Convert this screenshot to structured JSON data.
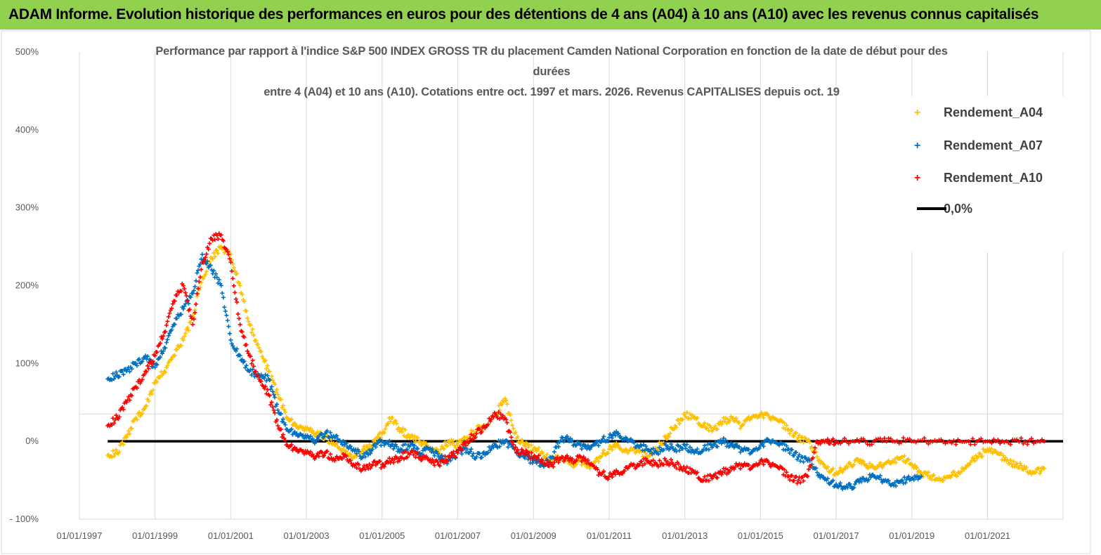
{
  "banner": {
    "text": "ADAM Informe. Evolution historique des performances en euros pour des détentions de 4 ans (A04) à 10 ans (A10) avec les revenus connus capitalisés"
  },
  "colors": {
    "banner_bg": "#92d050",
    "A04": "#ffc000",
    "A07": "#0070c0",
    "A10": "#ff0000",
    "zero_line": "#000000",
    "grid": "#d9d9d9"
  },
  "chart_data": {
    "type": "scatter",
    "title_lines": [
      "Performance par rapport à l'indice S&P 500 INDEX GROSS TR  du placement Camden National Corporation en fonction de la date de début pour des",
      "durées",
      "entre 4 (A04) et 10 ans (A10).  Cotations entre oct. 1997 et mars. 2026. Revenus CAPITALISES depuis oct. 19"
    ],
    "xlabel": "",
    "ylabel": "",
    "x_range": [
      "1997-01-01",
      "2022-12-31"
    ],
    "ylim": [
      -100,
      500
    ],
    "y_ticks": [
      -100,
      0,
      100,
      200,
      300,
      400,
      500
    ],
    "y_tick_labels": [
      "- 100%",
      "0%",
      "100%",
      "200%",
      "300%",
      "400%",
      "500%"
    ],
    "x_ticks": [
      "1997-01-01",
      "1999-01-01",
      "2001-01-01",
      "2003-01-01",
      "2005-01-01",
      "2007-01-01",
      "2009-01-01",
      "2011-01-01",
      "2013-01-01",
      "2015-01-01",
      "2017-01-01",
      "2019-01-01",
      "2021-01-01"
    ],
    "x_tick_labels": [
      "01/01/1997",
      "01/01/1999",
      "01/01/2001",
      "01/01/2003",
      "01/01/2005",
      "01/01/2007",
      "01/01/2009",
      "01/01/2011",
      "01/01/2013",
      "01/01/2015",
      "01/01/2017",
      "01/01/2019",
      "01/01/2021"
    ],
    "grid": "vertical",
    "legend_position": "top-right",
    "legend": [
      "Rendement_A04",
      "Rendement_A07",
      "Rendement_A10",
      "0,0%"
    ],
    "series": [
      {
        "name": "Rendement_A04",
        "marker": "+",
        "x": [
          "1997-10-01",
          "1998-01-01",
          "1998-04-01",
          "1998-07-01",
          "1998-10-01",
          "1999-01-01",
          "1999-04-01",
          "1999-07-01",
          "1999-10-01",
          "2000-01-01",
          "2000-04-01",
          "2000-07-01",
          "2000-10-01",
          "2001-01-01",
          "2001-04-01",
          "2001-07-01",
          "2001-10-01",
          "2002-01-01",
          "2002-04-01",
          "2002-07-01",
          "2002-10-01",
          "2003-01-01",
          "2003-04-01",
          "2003-07-01",
          "2003-10-01",
          "2004-01-01",
          "2004-04-01",
          "2004-07-01",
          "2004-10-01",
          "2005-01-01",
          "2005-04-01",
          "2005-07-01",
          "2005-10-01",
          "2006-01-01",
          "2006-04-01",
          "2006-07-01",
          "2006-10-01",
          "2007-01-01",
          "2007-04-01",
          "2007-07-01",
          "2007-10-01",
          "2008-01-01",
          "2008-04-01",
          "2008-07-01",
          "2008-10-01",
          "2009-01-01",
          "2009-04-01",
          "2009-07-01",
          "2009-10-01",
          "2010-01-01",
          "2010-04-01",
          "2010-07-01",
          "2010-10-01",
          "2011-01-01",
          "2011-04-01",
          "2011-07-01",
          "2011-10-01",
          "2012-01-01",
          "2012-04-01",
          "2012-07-01",
          "2012-10-01",
          "2013-01-01",
          "2013-04-01",
          "2013-07-01",
          "2013-10-01",
          "2014-01-01",
          "2014-04-01",
          "2014-07-01",
          "2014-10-01",
          "2015-01-01",
          "2015-04-01",
          "2015-07-01",
          "2015-10-01",
          "2016-01-01",
          "2016-04-01",
          "2016-07-01",
          "2016-10-01",
          "2017-01-01",
          "2017-04-01",
          "2017-07-01",
          "2017-10-01",
          "2018-01-01",
          "2018-04-01",
          "2018-07-01",
          "2018-10-01",
          "2019-01-01",
          "2019-04-01",
          "2019-07-01",
          "2019-10-01",
          "2020-01-01",
          "2020-04-01",
          "2020-07-01",
          "2020-10-01",
          "2021-01-01",
          "2021-04-01",
          "2021-07-01",
          "2021-10-01",
          "2022-01-01",
          "2022-04-01",
          "2022-07-01"
        ],
        "values": [
          -18,
          -15,
          5,
          30,
          45,
          75,
          90,
          110,
          130,
          160,
          210,
          235,
          250,
          240,
          200,
          150,
          120,
          90,
          60,
          30,
          20,
          15,
          10,
          5,
          -5,
          -15,
          -20,
          -10,
          -5,
          10,
          30,
          15,
          5,
          0,
          -10,
          -15,
          0,
          -5,
          5,
          15,
          20,
          35,
          55,
          10,
          -5,
          -10,
          -15,
          -25,
          -20,
          -30,
          -25,
          -35,
          -20,
          -10,
          -5,
          -15,
          -10,
          -20,
          -10,
          5,
          20,
          35,
          30,
          20,
          15,
          25,
          30,
          20,
          30,
          35,
          30,
          25,
          15,
          5,
          0,
          -20,
          -35,
          -40,
          -35,
          -25,
          -30,
          -35,
          -30,
          -25,
          -20,
          -30,
          -40,
          -45,
          -50,
          -45,
          -40,
          -30,
          -20,
          -10,
          -15,
          -25,
          -30,
          -35,
          -40,
          -35
        ]
      },
      {
        "name": "Rendement_A07",
        "marker": "+",
        "x": [
          "1997-10-01",
          "1998-01-01",
          "1998-04-01",
          "1998-07-01",
          "1998-10-01",
          "1999-01-01",
          "1999-04-01",
          "1999-07-01",
          "1999-10-01",
          "2000-01-01",
          "2000-04-01",
          "2000-07-01",
          "2000-10-01",
          "2001-01-01",
          "2001-04-01",
          "2001-07-01",
          "2001-10-01",
          "2002-01-01",
          "2002-04-01",
          "2002-07-01",
          "2002-10-01",
          "2003-01-01",
          "2003-04-01",
          "2003-07-01",
          "2003-10-01",
          "2004-01-01",
          "2004-04-01",
          "2004-07-01",
          "2004-10-01",
          "2005-01-01",
          "2005-04-01",
          "2005-07-01",
          "2005-10-01",
          "2006-01-01",
          "2006-04-01",
          "2006-07-01",
          "2006-10-01",
          "2007-01-01",
          "2007-04-01",
          "2007-07-01",
          "2007-10-01",
          "2008-01-01",
          "2008-04-01",
          "2008-07-01",
          "2008-10-01",
          "2009-01-01",
          "2009-04-01",
          "2009-07-01",
          "2009-10-01",
          "2010-01-01",
          "2010-04-01",
          "2010-07-01",
          "2010-10-01",
          "2011-01-01",
          "2011-04-01",
          "2011-07-01",
          "2011-10-01",
          "2012-01-01",
          "2012-04-01",
          "2012-07-01",
          "2012-10-01",
          "2013-01-01",
          "2013-04-01",
          "2013-07-01",
          "2013-10-01",
          "2014-01-01",
          "2014-04-01",
          "2014-07-01",
          "2014-10-01",
          "2015-01-01",
          "2015-04-01",
          "2015-07-01",
          "2015-10-01",
          "2016-01-01",
          "2016-04-01",
          "2016-07-01",
          "2016-10-01",
          "2017-01-01",
          "2017-04-01",
          "2017-07-01",
          "2017-10-01",
          "2018-01-01",
          "2018-04-01",
          "2018-07-01",
          "2018-10-01",
          "2019-01-01",
          "2019-04-01"
        ],
        "values": [
          80,
          85,
          90,
          100,
          110,
          95,
          120,
          150,
          170,
          190,
          240,
          220,
          200,
          130,
          110,
          90,
          85,
          80,
          40,
          15,
          10,
          5,
          0,
          10,
          5,
          -5,
          -10,
          -20,
          -10,
          0,
          -5,
          -10,
          -5,
          -15,
          -10,
          -20,
          -25,
          -15,
          -10,
          -20,
          -15,
          -5,
          0,
          -10,
          -20,
          -25,
          -30,
          -20,
          5,
          0,
          -5,
          -10,
          0,
          5,
          10,
          0,
          -5,
          -10,
          -15,
          -5,
          -10,
          -5,
          -15,
          -10,
          -5,
          0,
          -5,
          -10,
          -15,
          -5,
          0,
          -5,
          -10,
          -20,
          -25,
          -40,
          -50,
          -55,
          -60,
          -55,
          -50,
          -45,
          -50,
          -55,
          -50,
          -48,
          -45
        ]
      },
      {
        "name": "Rendement_A10",
        "marker": "+",
        "x": [
          "1997-10-01",
          "1998-01-01",
          "1998-04-01",
          "1998-07-01",
          "1998-10-01",
          "1999-01-01",
          "1999-04-01",
          "1999-07-01",
          "1999-10-01",
          "2000-01-01",
          "2000-04-01",
          "2000-07-01",
          "2000-10-01",
          "2001-01-01",
          "2001-04-01",
          "2001-07-01",
          "2001-10-01",
          "2002-01-01",
          "2002-04-01",
          "2002-07-01",
          "2002-10-01",
          "2003-01-01",
          "2003-04-01",
          "2003-07-01",
          "2003-10-01",
          "2004-01-01",
          "2004-04-01",
          "2004-07-01",
          "2004-10-01",
          "2005-01-01",
          "2005-04-01",
          "2005-07-01",
          "2005-10-01",
          "2006-01-01",
          "2006-04-01",
          "2006-07-01",
          "2006-10-01",
          "2007-01-01",
          "2007-04-01",
          "2007-07-01",
          "2007-10-01",
          "2008-01-01",
          "2008-04-01",
          "2008-07-01",
          "2008-10-01",
          "2009-01-01",
          "2009-04-01",
          "2009-07-01",
          "2009-10-01",
          "2010-01-01",
          "2010-04-01",
          "2010-07-01",
          "2010-10-01",
          "2011-01-01",
          "2011-04-01",
          "2011-07-01",
          "2011-10-01",
          "2012-01-01",
          "2012-04-01",
          "2012-07-01",
          "2012-10-01",
          "2013-01-01",
          "2013-04-01",
          "2013-07-01",
          "2013-10-01",
          "2014-01-01",
          "2014-04-01",
          "2014-07-01",
          "2014-10-01",
          "2015-01-01",
          "2015-04-01",
          "2015-07-01",
          "2015-10-01",
          "2016-01-01",
          "2016-04-01",
          "2016-07-01",
          "2016-10-01",
          "2017-01-01",
          "2017-07-01",
          "2018-01-01",
          "2018-07-01",
          "2019-01-01",
          "2019-07-01",
          "2020-01-01",
          "2020-07-01",
          "2021-01-01",
          "2021-07-01",
          "2022-01-01",
          "2022-07-01"
        ],
        "values": [
          20,
          30,
          50,
          70,
          90,
          110,
          140,
          180,
          200,
          150,
          230,
          260,
          265,
          230,
          150,
          110,
          80,
          60,
          20,
          -5,
          -10,
          -15,
          -20,
          -15,
          -25,
          -20,
          -30,
          -35,
          -30,
          -30,
          -25,
          -20,
          -15,
          -20,
          -25,
          -30,
          -20,
          -15,
          0,
          10,
          20,
          35,
          30,
          -10,
          -15,
          -20,
          -25,
          -30,
          -20,
          -25,
          -20,
          -30,
          -40,
          -45,
          -40,
          -35,
          -30,
          -25,
          -30,
          -25,
          -30,
          -35,
          -40,
          -50,
          -45,
          -40,
          -35,
          -30,
          -35,
          -25,
          -30,
          -35,
          -45,
          -50,
          -45,
          0,
          0,
          0,
          0,
          0,
          0,
          0,
          0,
          0,
          0,
          0,
          0,
          0,
          0
        ]
      },
      {
        "name": "0,0%",
        "marker": "line",
        "x": [
          "1997-10-01",
          "2022-12-31"
        ],
        "values": [
          0,
          0
        ]
      }
    ]
  }
}
